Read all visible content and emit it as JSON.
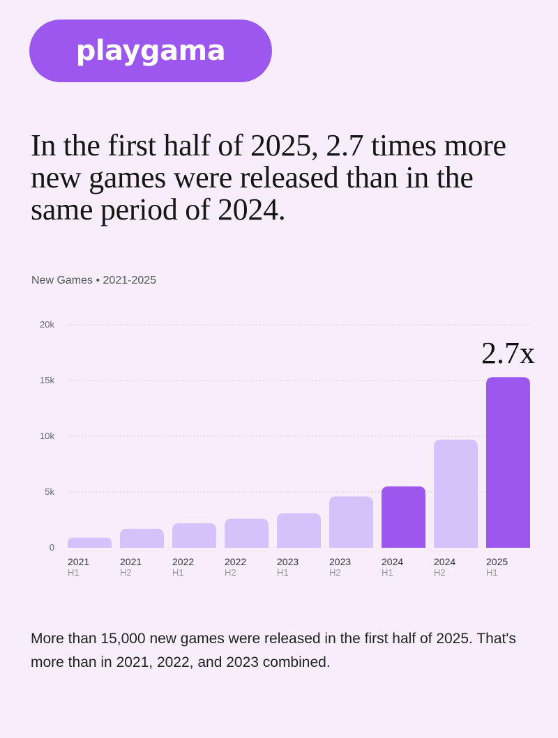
{
  "brand": {
    "logo_text": "playgama"
  },
  "headline": "In the first half of 2025, 2.7 times more new games were released than in the same period of 2024.",
  "chart_caption": "New Games • 2021-2025",
  "footer": "More than 15,000 new games were released in the first half of 2025. That's more than in 2021, 2022, and 2023 combined.",
  "colors": {
    "accent": "#9b57ee",
    "bar_light": "#d6c2fb",
    "background": "#f8eefb"
  },
  "chart_data": {
    "type": "bar",
    "title": "New Games • 2021-2025",
    "categories": [
      [
        "2021",
        "H1"
      ],
      [
        "2021",
        "H2"
      ],
      [
        "2022",
        "H1"
      ],
      [
        "2022",
        "H2"
      ],
      [
        "2023",
        "H1"
      ],
      [
        "2023",
        "H2"
      ],
      [
        "2024",
        "H1"
      ],
      [
        "2024",
        "H2"
      ],
      [
        "2025",
        "H1"
      ]
    ],
    "values": [
      900,
      1700,
      2200,
      2600,
      3100,
      4600,
      5500,
      9700,
      15300
    ],
    "highlighted": [
      false,
      false,
      false,
      false,
      false,
      false,
      true,
      false,
      true
    ],
    "yticks": [
      0,
      5000,
      10000,
      15000,
      20000
    ],
    "ytick_labels": [
      "0",
      "5k",
      "10k",
      "15k",
      "20k"
    ],
    "ylim": [
      0,
      20000
    ],
    "grid": true,
    "annotation": {
      "text": "2.7x",
      "category_index": 8
    }
  }
}
